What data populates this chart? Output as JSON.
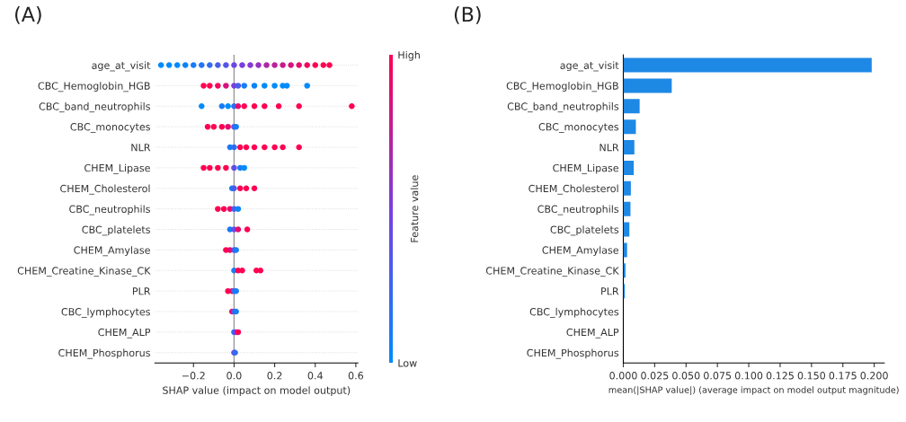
{
  "chart_data": [
    {
      "type": "scatter",
      "title": "(A)",
      "xlabel": "SHAP value (impact on model output)",
      "clabel": "Feature value",
      "orientation": "horizontal",
      "grid": "y",
      "categories": [
        "age_at_visit",
        "CBC_Hemoglobin_HGB",
        "CBC_band_neutrophils",
        "CBC_monocytes",
        "NLR",
        "CHEM_Lipase",
        "CHEM_Cholesterol",
        "CBC_neutrophils",
        "CBC_platelets",
        "CHEM_Amylase",
        "CHEM_Creatine_Kinase_CK",
        "PLR",
        "CBC_lymphocytes",
        "CHEM_ALP",
        "CHEM_Phosphorus"
      ],
      "xlim": [
        -0.39,
        0.61
      ],
      "xticks": [
        {
          "value": -0.2,
          "label": "−0.2"
        },
        {
          "value": 0,
          "label": "0.0"
        },
        {
          "value": 0.2,
          "label": "0.2"
        },
        {
          "value": 0.4,
          "label": "0.4"
        },
        {
          "value": 0.6,
          "label": "0.6"
        }
      ],
      "ref_lines": [
        {
          "axis": "x",
          "value": 0,
          "color": "#999999"
        }
      ],
      "clim": [
        0,
        1
      ],
      "cticks": [
        {
          "value": 0,
          "label": "Low"
        },
        {
          "value": 1,
          "label": "High"
        }
      ],
      "series": [
        {
          "x": [
            "age_at_visit",
            "age_at_visit",
            "age_at_visit",
            "age_at_visit",
            "age_at_visit",
            "age_at_visit",
            "age_at_visit",
            "age_at_visit",
            "age_at_visit",
            "age_at_visit",
            "age_at_visit",
            "age_at_visit",
            "age_at_visit",
            "age_at_visit",
            "age_at_visit",
            "age_at_visit",
            "age_at_visit",
            "age_at_visit",
            "age_at_visit",
            "age_at_visit",
            "age_at_visit",
            "age_at_visit",
            "CBC_Hemoglobin_HGB",
            "CBC_Hemoglobin_HGB",
            "CBC_Hemoglobin_HGB",
            "CBC_Hemoglobin_HGB",
            "CBC_Hemoglobin_HGB",
            "CBC_Hemoglobin_HGB",
            "CBC_Hemoglobin_HGB",
            "CBC_Hemoglobin_HGB",
            "CBC_Hemoglobin_HGB",
            "CBC_Hemoglobin_HGB",
            "CBC_Hemoglobin_HGB",
            "CBC_Hemoglobin_HGB",
            "CBC_Hemoglobin_HGB",
            "CBC_band_neutrophils",
            "CBC_band_neutrophils",
            "CBC_band_neutrophils",
            "CBC_band_neutrophils",
            "CBC_band_neutrophils",
            "CBC_band_neutrophils",
            "CBC_band_neutrophils",
            "CBC_band_neutrophils",
            "CBC_band_neutrophils",
            "CBC_band_neutrophils",
            "CBC_band_neutrophils",
            "CBC_monocytes",
            "CBC_monocytes",
            "CBC_monocytes",
            "CBC_monocytes",
            "CBC_monocytes",
            "CBC_monocytes",
            "NLR",
            "NLR",
            "NLR",
            "NLR",
            "NLR",
            "NLR",
            "NLR",
            "NLR",
            "NLR",
            "CHEM_Lipase",
            "CHEM_Lipase",
            "CHEM_Lipase",
            "CHEM_Lipase",
            "CHEM_Lipase",
            "CHEM_Lipase",
            "CHEM_Lipase",
            "CHEM_Cholesterol",
            "CHEM_Cholesterol",
            "CHEM_Cholesterol",
            "CHEM_Cholesterol",
            "CHEM_Cholesterol",
            "CBC_neutrophils",
            "CBC_neutrophils",
            "CBC_neutrophils",
            "CBC_neutrophils",
            "CBC_neutrophils",
            "CBC_platelets",
            "CBC_platelets",
            "CBC_platelets",
            "CBC_platelets",
            "CHEM_Amylase",
            "CHEM_Amylase",
            "CHEM_Amylase",
            "CHEM_Amylase",
            "CHEM_Creatine_Kinase_CK",
            "CHEM_Creatine_Kinase_CK",
            "CHEM_Creatine_Kinase_CK",
            "CHEM_Creatine_Kinase_CK",
            "CHEM_Creatine_Kinase_CK",
            "PLR",
            "PLR",
            "PLR",
            "PLR",
            "CBC_lymphocytes",
            "CBC_lymphocytes",
            "CBC_lymphocytes",
            "CHEM_ALP",
            "CHEM_ALP",
            "CHEM_ALP",
            "CHEM_Phosphorus",
            "CHEM_Phosphorus"
          ],
          "values": [
            -0.36,
            -0.32,
            -0.28,
            -0.24,
            -0.2,
            -0.16,
            -0.12,
            -0.08,
            -0.04,
            0.0,
            0.04,
            0.08,
            0.12,
            0.16,
            0.2,
            0.24,
            0.28,
            0.32,
            0.36,
            0.4,
            0.44,
            0.47,
            -0.15,
            -0.12,
            -0.08,
            -0.04,
            0.0,
            0.02,
            0.05,
            0.1,
            0.15,
            0.2,
            0.24,
            0.26,
            0.36,
            -0.16,
            -0.06,
            -0.03,
            0.0,
            0.02,
            0.05,
            0.1,
            0.15,
            0.22,
            0.32,
            0.58,
            -0.13,
            -0.1,
            -0.06,
            -0.03,
            0.0,
            0.01,
            -0.02,
            0.0,
            0.03,
            0.06,
            0.1,
            0.15,
            0.2,
            0.24,
            0.32,
            -0.15,
            -0.12,
            -0.08,
            -0.04,
            0.0,
            0.03,
            0.05,
            -0.01,
            0.0,
            0.03,
            0.06,
            0.1,
            -0.08,
            -0.05,
            -0.02,
            0.0,
            0.02,
            -0.02,
            0.0,
            0.02,
            0.065,
            -0.04,
            -0.02,
            0.0,
            0.01,
            0.0,
            0.02,
            0.04,
            0.11,
            0.13,
            -0.03,
            -0.01,
            0.0,
            0.01,
            -0.01,
            0.0,
            0.01,
            0.0,
            0.01,
            0.02,
            0.0,
            0.005
          ],
          "cvalues": [
            0,
            0,
            0,
            0.05,
            0.1,
            0.15,
            0.2,
            0.3,
            0.35,
            0.45,
            0.5,
            0.55,
            0.6,
            0.7,
            0.75,
            0.8,
            0.85,
            0.9,
            0.95,
            1,
            1,
            1,
            1,
            1,
            0.95,
            0.85,
            0.5,
            0.3,
            0.1,
            0.05,
            0,
            0,
            0,
            0,
            0,
            0,
            0.1,
            0,
            0.2,
            0.9,
            1,
            1,
            1,
            1,
            1,
            1,
            1,
            1,
            1,
            0.9,
            0.3,
            0.1,
            0.1,
            0.2,
            1,
            1,
            1,
            1,
            1,
            1,
            1,
            1,
            1,
            1,
            1,
            0.4,
            0.1,
            0,
            0.1,
            0.3,
            1,
            1,
            1,
            1,
            1,
            0.9,
            0.3,
            0.05,
            0.1,
            0.4,
            0.9,
            1,
            1,
            0.9,
            0.4,
            0.1,
            0.1,
            1,
            1,
            1,
            1,
            1,
            0.9,
            0.2,
            0.1,
            0.9,
            0.3,
            0.1,
            0.2,
            0.5,
            1,
            0.5,
            0.2
          ]
        }
      ]
    },
    {
      "type": "bar",
      "title": "(B)",
      "xlabel": "mean(|SHAP value|) (average impact on model output magnitude)",
      "orientation": "horizontal",
      "color": "#1e88e5",
      "categories": [
        "age_at_visit",
        "CBC_Hemoglobin_HGB",
        "CBC_band_neutrophils",
        "CBC_monocytes",
        "NLR",
        "CHEM_Lipase",
        "CHEM_Cholesterol",
        "CBC_neutrophils",
        "CBC_platelets",
        "CHEM_Amylase",
        "CHEM_Creatine_Kinase_CK",
        "PLR",
        "CBC_lymphocytes",
        "CHEM_ALP",
        "CHEM_Phosphorus"
      ],
      "values": [
        0.198,
        0.0386,
        0.013,
        0.01,
        0.0088,
        0.0083,
        0.006,
        0.0057,
        0.0048,
        0.003,
        0.0017,
        0.0012,
        null,
        null,
        null
      ],
      "xlim": [
        0,
        0.208
      ],
      "xticks": [
        {
          "value": 0,
          "label": "0.000"
        },
        {
          "value": 0.025,
          "label": "0.025"
        },
        {
          "value": 0.05,
          "label": "0.050"
        },
        {
          "value": 0.075,
          "label": "0.075"
        },
        {
          "value": 0.1,
          "label": "0.100"
        },
        {
          "value": 0.125,
          "label": "0.125"
        },
        {
          "value": 0.15,
          "label": "0.150"
        },
        {
          "value": 0.175,
          "label": "0.175"
        },
        {
          "value": 0.2,
          "label": "0.200"
        }
      ]
    }
  ]
}
